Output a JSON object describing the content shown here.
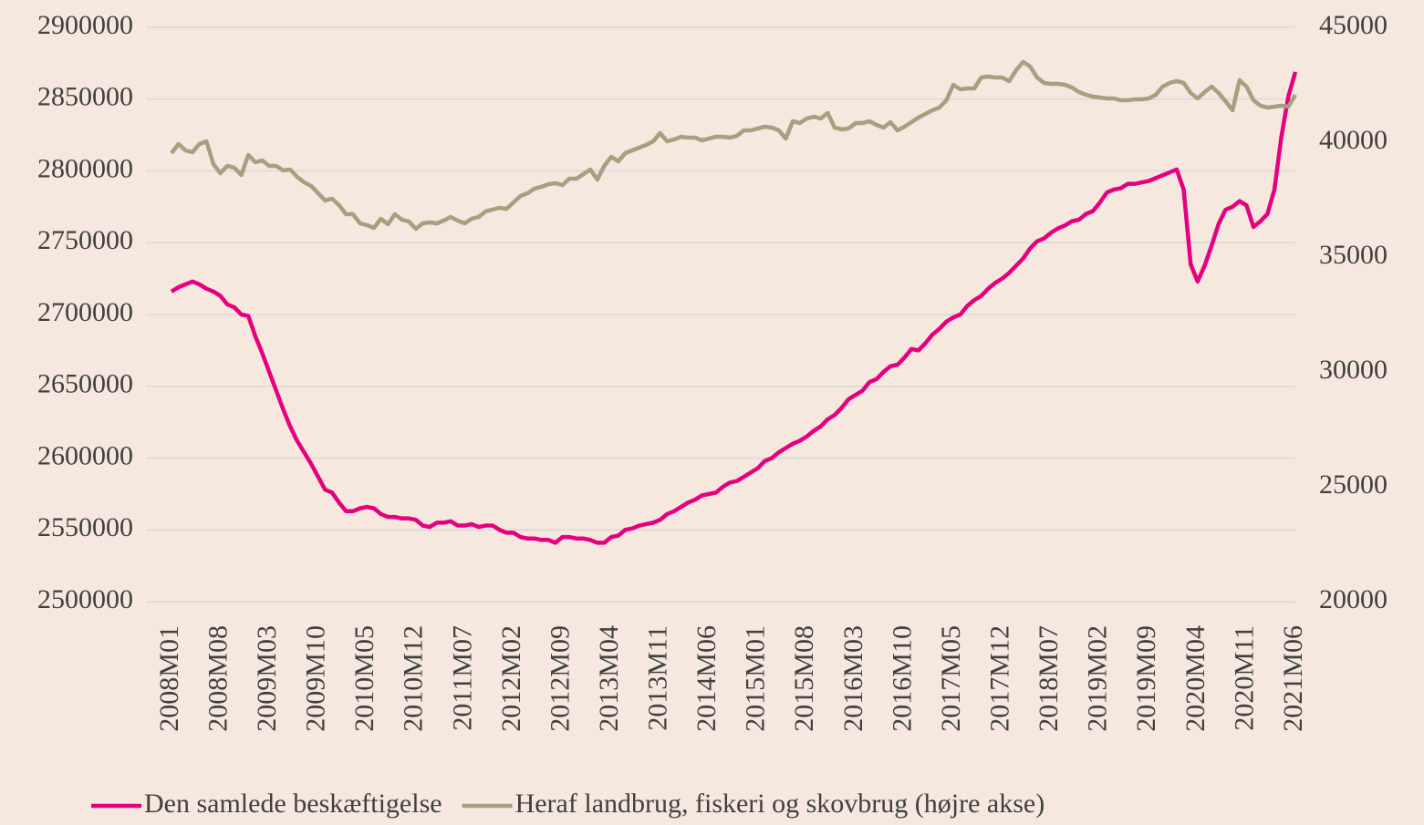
{
  "chart_data": {
    "type": "line",
    "categories": [
      "2008M01",
      null,
      null,
      null,
      null,
      null,
      null,
      "2008M08",
      null,
      null,
      null,
      null,
      null,
      null,
      "2009M03",
      null,
      null,
      null,
      null,
      null,
      null,
      "2009M10",
      null,
      null,
      null,
      null,
      null,
      null,
      "2010M05",
      null,
      null,
      null,
      null,
      null,
      null,
      "2010M12",
      null,
      null,
      null,
      null,
      null,
      null,
      "2011M07",
      null,
      null,
      null,
      null,
      null,
      null,
      "2012M02",
      null,
      null,
      null,
      null,
      null,
      null,
      "2012M09",
      null,
      null,
      null,
      null,
      null,
      null,
      "2013M04",
      null,
      null,
      null,
      null,
      null,
      null,
      "2013M11",
      null,
      null,
      null,
      null,
      null,
      null,
      "2014M06",
      null,
      null,
      null,
      null,
      null,
      null,
      "2015M01",
      null,
      null,
      null,
      null,
      null,
      null,
      "2015M08",
      null,
      null,
      null,
      null,
      null,
      null,
      "2016M03",
      null,
      null,
      null,
      null,
      null,
      null,
      "2016M10",
      null,
      null,
      null,
      null,
      null,
      null,
      "2017M05",
      null,
      null,
      null,
      null,
      null,
      null,
      "2017M12",
      null,
      null,
      null,
      null,
      null,
      null,
      "2018M07",
      null,
      null,
      null,
      null,
      null,
      null,
      "2019M02",
      null,
      null,
      null,
      null,
      null,
      null,
      "2019M09",
      null,
      null,
      null,
      null,
      null,
      null,
      "2020M04",
      null,
      null,
      null,
      null,
      null,
      null,
      "2020M11",
      null,
      null,
      null,
      null,
      null,
      null,
      "2021M06"
    ],
    "series": [
      {
        "name": "Den samlede beskæftigelse",
        "color": "#e6007e",
        "values": [
          2716000,
          2719000,
          2721000,
          2723000,
          2721000,
          2718000,
          2716000,
          2713000,
          2707000,
          2705000,
          2700000,
          2699000,
          2685000,
          2673000,
          2660000,
          2647000,
          2634000,
          2622000,
          2612000,
          2604000,
          2596000,
          2587000,
          2578000,
          2576000,
          2569000,
          2563000,
          2563000,
          2565000,
          2566000,
          2565000,
          2561000,
          2559000,
          2559000,
          2558000,
          2558000,
          2557000,
          2553000,
          2552000,
          2555000,
          2555000,
          2556000,
          2553000,
          2553000,
          2554000,
          2552000,
          2553000,
          2553000,
          2550000,
          2548000,
          2548000,
          2545000,
          2544000,
          2544000,
          2543000,
          2543000,
          2541000,
          2545000,
          2545000,
          2544000,
          2544000,
          2543000,
          2541000,
          2541000,
          2545000,
          2546000,
          2550000,
          2551000,
          2553000,
          2554000,
          2555000,
          2557000,
          2561000,
          2563000,
          2566000,
          2569000,
          2571000,
          2574000,
          2575000,
          2576000,
          2580000,
          2583000,
          2584000,
          2587000,
          2590000,
          2593000,
          2598000,
          2600000,
          2604000,
          2607000,
          2610000,
          2612000,
          2615000,
          2619000,
          2622000,
          2627000,
          2630000,
          2635000,
          2641000,
          2644000,
          2647000,
          2653000,
          2655000,
          2660000,
          2664000,
          2665000,
          2670000,
          2676000,
          2675000,
          2680000,
          2686000,
          2690000,
          2695000,
          2698000,
          2700000,
          2706000,
          2710000,
          2713000,
          2718000,
          2722000,
          2725000,
          2729000,
          2734000,
          2739000,
          2746000,
          2751000,
          2753000,
          2757000,
          2760000,
          2762000,
          2765000,
          2766000,
          2770000,
          2772000,
          2778000,
          2785000,
          2787000,
          2788000,
          2791000,
          2791000,
          2792000,
          2793000,
          2795000,
          2797000,
          2799000,
          2801000,
          2787000,
          2735000,
          2723000,
          2734000,
          2748000,
          2763000,
          2773000,
          2775000,
          2779000,
          2776000,
          2761000,
          2765000,
          2770000,
          2787000,
          2824000,
          2852000,
          2869000
        ]
      },
      {
        "name": "Heraf landbrug, fiskeri og skovbrug (højre akse)",
        "color": "#a99e7f",
        "axis": "y2",
        "values": [
          39524,
          39921,
          39643,
          39564,
          39921,
          40040,
          39048,
          38651,
          38969,
          38889,
          38572,
          39445,
          39127,
          39207,
          38969,
          38969,
          38770,
          38810,
          38492,
          38254,
          38096,
          37778,
          37461,
          37540,
          37262,
          36866,
          36866,
          36469,
          36389,
          36270,
          36667,
          36429,
          36866,
          36627,
          36548,
          36231,
          36469,
          36508,
          36469,
          36588,
          36746,
          36588,
          36469,
          36667,
          36746,
          36985,
          37064,
          37143,
          37104,
          37381,
          37659,
          37778,
          37977,
          38056,
          38175,
          38215,
          38135,
          38413,
          38413,
          38612,
          38810,
          38373,
          38969,
          39366,
          39167,
          39524,
          39643,
          39762,
          39881,
          40040,
          40397,
          40040,
          40120,
          40239,
          40199,
          40199,
          40080,
          40159,
          40239,
          40239,
          40199,
          40278,
          40516,
          40516,
          40596,
          40675,
          40635,
          40516,
          40159,
          40913,
          40834,
          41032,
          41112,
          41032,
          41270,
          40635,
          40556,
          40596,
          40834,
          40834,
          40913,
          40754,
          40635,
          40873,
          40516,
          40675,
          40873,
          41072,
          41231,
          41389,
          41508,
          41826,
          42500,
          42302,
          42342,
          42342,
          42818,
          42858,
          42818,
          42818,
          42659,
          43135,
          43493,
          43294,
          42818,
          42580,
          42540,
          42540,
          42500,
          42381,
          42183,
          42064,
          41985,
          41945,
          41905,
          41905,
          41826,
          41826,
          41866,
          41866,
          41905,
          42064,
          42421,
          42580,
          42659,
          42580,
          42143,
          41905,
          42183,
          42421,
          42143,
          41786,
          41389,
          42699,
          42421,
          41826,
          41588,
          41508,
          41548,
          41588,
          41548,
          42064
        ]
      }
    ],
    "ylim": [
      2500000,
      2900000
    ],
    "yticks": [
      2500000,
      2550000,
      2600000,
      2650000,
      2700000,
      2750000,
      2800000,
      2850000,
      2900000
    ],
    "y2lim": [
      20000,
      45000
    ],
    "y2ticks": [
      20000,
      25000,
      30000,
      35000,
      40000,
      45000
    ],
    "grid": true,
    "legend": "bottom"
  }
}
